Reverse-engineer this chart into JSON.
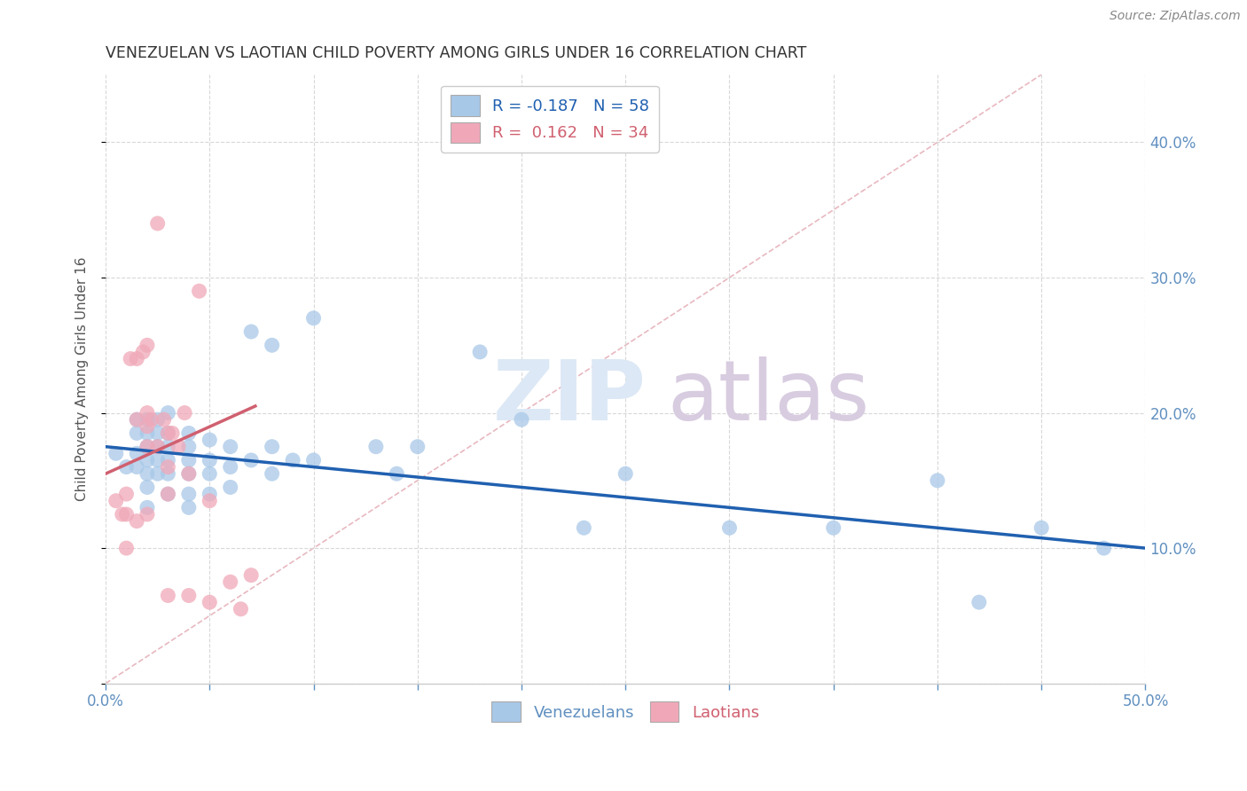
{
  "title": "VENEZUELAN VS LAOTIAN CHILD POVERTY AMONG GIRLS UNDER 16 CORRELATION CHART",
  "source": "Source: ZipAtlas.com",
  "ylabel": "Child Poverty Among Girls Under 16",
  "xlim": [
    0.0,
    0.5
  ],
  "ylim": [
    0.0,
    0.45
  ],
  "xticks": [
    0.0,
    0.05,
    0.1,
    0.15,
    0.2,
    0.25,
    0.3,
    0.35,
    0.4,
    0.45,
    0.5
  ],
  "yticks": [
    0.0,
    0.1,
    0.2,
    0.3,
    0.4
  ],
  "venezuelan_color": "#a8c8e8",
  "laotian_color": "#f0a8b8",
  "venezuelan_line_color": "#2060b0",
  "laotian_line_color": "#d06070",
  "diagonal_line_color": "#e8b8c0",
  "background_color": "#ffffff",
  "grid_color": "#d8d8d8",
  "watermark_zip_color": "#dce8f5",
  "watermark_atlas_color": "#d8cce0",
  "legend_text_ven_color": "#2060b0",
  "legend_text_lao_color": "#d06070",
  "legend_N_color": "#2060b0",
  "tick_color": "#6090c0",
  "title_color": "#333333",
  "ylabel_color": "#555555",
  "source_color": "#888888",
  "venezuelan_x": [
    0.005,
    0.01,
    0.015,
    0.015,
    0.015,
    0.015,
    0.02,
    0.02,
    0.02,
    0.02,
    0.02,
    0.02,
    0.02,
    0.025,
    0.025,
    0.025,
    0.025,
    0.025,
    0.03,
    0.03,
    0.03,
    0.03,
    0.03,
    0.03,
    0.04,
    0.04,
    0.04,
    0.04,
    0.04,
    0.04,
    0.05,
    0.05,
    0.05,
    0.05,
    0.06,
    0.06,
    0.06,
    0.07,
    0.07,
    0.08,
    0.08,
    0.08,
    0.09,
    0.1,
    0.1,
    0.15,
    0.2,
    0.25,
    0.3,
    0.35,
    0.4,
    0.42,
    0.45,
    0.48,
    0.13,
    0.14,
    0.18,
    0.23
  ],
  "venezuelan_y": [
    0.17,
    0.16,
    0.195,
    0.185,
    0.17,
    0.16,
    0.195,
    0.185,
    0.175,
    0.165,
    0.155,
    0.145,
    0.13,
    0.195,
    0.185,
    0.175,
    0.165,
    0.155,
    0.2,
    0.185,
    0.175,
    0.165,
    0.155,
    0.14,
    0.185,
    0.175,
    0.165,
    0.155,
    0.14,
    0.13,
    0.18,
    0.165,
    0.155,
    0.14,
    0.175,
    0.16,
    0.145,
    0.26,
    0.165,
    0.25,
    0.175,
    0.155,
    0.165,
    0.27,
    0.165,
    0.175,
    0.195,
    0.155,
    0.115,
    0.115,
    0.15,
    0.06,
    0.115,
    0.1,
    0.175,
    0.155,
    0.245,
    0.115
  ],
  "laotian_x": [
    0.005,
    0.008,
    0.01,
    0.01,
    0.01,
    0.012,
    0.015,
    0.015,
    0.015,
    0.018,
    0.02,
    0.02,
    0.02,
    0.02,
    0.02,
    0.022,
    0.025,
    0.025,
    0.028,
    0.03,
    0.03,
    0.03,
    0.03,
    0.032,
    0.035,
    0.038,
    0.04,
    0.04,
    0.045,
    0.05,
    0.05,
    0.06,
    0.065,
    0.07
  ],
  "laotian_y": [
    0.135,
    0.125,
    0.14,
    0.125,
    0.1,
    0.24,
    0.24,
    0.195,
    0.12,
    0.245,
    0.25,
    0.2,
    0.19,
    0.175,
    0.125,
    0.195,
    0.34,
    0.175,
    0.195,
    0.185,
    0.16,
    0.14,
    0.065,
    0.185,
    0.175,
    0.2,
    0.155,
    0.065,
    0.29,
    0.135,
    0.06,
    0.075,
    0.055,
    0.08
  ],
  "ven_trend_x0": 0.0,
  "ven_trend_x1": 0.5,
  "ven_trend_y0": 0.175,
  "ven_trend_y1": 0.1,
  "lao_trend_x0": 0.0,
  "lao_trend_x1": 0.072,
  "lao_trend_y0": 0.155,
  "lao_trend_y1": 0.205
}
